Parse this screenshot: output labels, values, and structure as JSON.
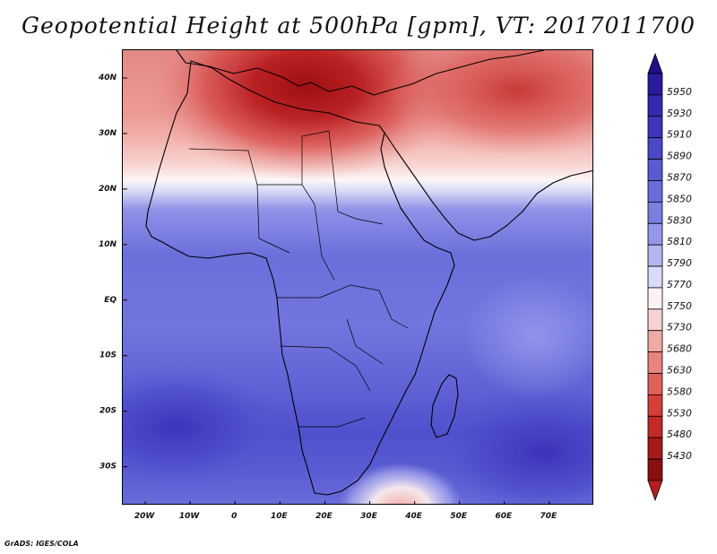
{
  "title": "Geopotential Height at 500hPa [gpm], VT: 2017011700",
  "credit": "GrADS: IGES/COLA",
  "map": {
    "region": "Africa",
    "lon_range": [
      -25,
      80
    ],
    "lat_range": [
      -37,
      45
    ],
    "lon_ticks": [
      "20W",
      "10W",
      "0",
      "10E",
      "20E",
      "30E",
      "40E",
      "50E",
      "60E",
      "70E"
    ],
    "lat_ticks": [
      "40N",
      "30N",
      "20N",
      "10N",
      "EQ",
      "10S",
      "20S",
      "30S"
    ]
  },
  "colorbar": {
    "levels": [
      "5950",
      "5930",
      "5910",
      "5890",
      "5870",
      "5850",
      "5830",
      "5810",
      "5790",
      "5770",
      "5750",
      "5730",
      "5680",
      "5630",
      "5580",
      "5530",
      "5480",
      "5430"
    ],
    "colors": [
      "#2a1a9e",
      "#3428b0",
      "#3d36bd",
      "#4a47c8",
      "#5a5bd2",
      "#6a6cda",
      "#7b7fe2",
      "#9598ea",
      "#b4b6f2",
      "#d9dbf8",
      "#fbf3f3",
      "#f7d3d1",
      "#f0aaa6",
      "#e8837e",
      "#e06058",
      "#d63e38",
      "#c42a26",
      "#a81a18",
      "#8b0f10"
    ],
    "pointer_colors": {
      "top": "#1f0f8a",
      "bottom": "#b81c1c"
    }
  }
}
